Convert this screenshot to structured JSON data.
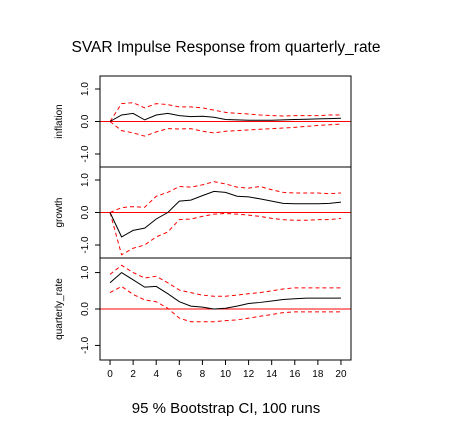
{
  "chart_data": {
    "type": "line",
    "title": "SVAR Impulse Response from quarterly_rate",
    "footer": "95 % Bootstrap CI,  100 runs",
    "x": [
      0,
      1,
      2,
      3,
      4,
      5,
      6,
      7,
      8,
      9,
      10,
      11,
      12,
      13,
      14,
      15,
      16,
      17,
      18,
      19,
      20
    ],
    "x_ticks": [
      "0",
      "2",
      "4",
      "6",
      "8",
      "10",
      "12",
      "14",
      "16",
      "18",
      "20"
    ],
    "y_ticks": [
      "-1.0",
      "0.0",
      "1.0"
    ],
    "ylim": [
      -1.4,
      1.4
    ],
    "line_colors": {
      "response": "#000000",
      "ci": "#ff0000",
      "zero": "#ff0000"
    },
    "panels": [
      {
        "ylabel": "inflation",
        "response": [
          0.0,
          0.2,
          0.25,
          0.05,
          0.2,
          0.25,
          0.18,
          0.15,
          0.16,
          0.13,
          0.06,
          0.05,
          0.04,
          0.04,
          0.04,
          0.05,
          0.06,
          0.07,
          0.08,
          0.09,
          0.1
        ],
        "lower": [
          0.0,
          -0.28,
          -0.35,
          -0.45,
          -0.32,
          -0.22,
          -0.23,
          -0.22,
          -0.3,
          -0.35,
          -0.3,
          -0.28,
          -0.26,
          -0.24,
          -0.22,
          -0.2,
          -0.18,
          -0.15,
          -0.12,
          -0.1,
          -0.08
        ],
        "upper": [
          0.0,
          0.55,
          0.58,
          0.42,
          0.55,
          0.52,
          0.45,
          0.45,
          0.42,
          0.35,
          0.28,
          0.25,
          0.23,
          0.2,
          0.18,
          0.17,
          0.18,
          0.18,
          0.18,
          0.2,
          0.2
        ]
      },
      {
        "ylabel": "growth",
        "response": [
          0.0,
          -0.75,
          -0.55,
          -0.48,
          -0.2,
          0.0,
          0.35,
          0.38,
          0.52,
          0.65,
          0.62,
          0.5,
          0.48,
          0.42,
          0.35,
          0.28,
          0.27,
          0.27,
          0.27,
          0.28,
          0.32
        ],
        "lower": [
          0.0,
          -1.3,
          -1.1,
          -1.0,
          -0.75,
          -0.6,
          -0.22,
          -0.2,
          -0.12,
          -0.05,
          -0.03,
          -0.05,
          -0.08,
          -0.12,
          -0.18,
          -0.22,
          -0.24,
          -0.24,
          -0.22,
          -0.22,
          -0.18
        ],
        "upper": [
          0.0,
          0.15,
          0.18,
          0.16,
          0.5,
          0.62,
          0.8,
          0.78,
          0.85,
          0.95,
          0.88,
          0.78,
          0.75,
          0.8,
          0.7,
          0.62,
          0.6,
          0.6,
          0.6,
          0.58,
          0.6
        ]
      },
      {
        "ylabel": "quarterly_rate",
        "response": [
          0.72,
          1.0,
          0.8,
          0.6,
          0.62,
          0.42,
          0.2,
          0.08,
          0.05,
          0.0,
          0.02,
          0.08,
          0.15,
          0.18,
          0.22,
          0.26,
          0.28,
          0.3,
          0.3,
          0.3,
          0.3
        ],
        "lower": [
          0.45,
          0.62,
          0.4,
          0.25,
          0.2,
          0.02,
          -0.25,
          -0.35,
          -0.35,
          -0.35,
          -0.32,
          -0.3,
          -0.25,
          -0.2,
          -0.15,
          -0.1,
          -0.08,
          -0.08,
          -0.08,
          -0.08,
          -0.08
        ],
        "upper": [
          0.95,
          1.2,
          1.0,
          0.85,
          0.9,
          0.72,
          0.52,
          0.45,
          0.38,
          0.35,
          0.35,
          0.38,
          0.42,
          0.45,
          0.5,
          0.55,
          0.58,
          0.58,
          0.58,
          0.58,
          0.58
        ]
      }
    ]
  }
}
